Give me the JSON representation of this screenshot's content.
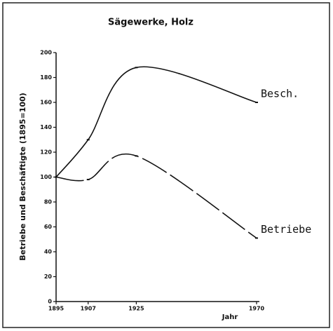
{
  "chart_data": {
    "type": "line",
    "title": "Sägewerke, Holz",
    "y_label": "Betriebe und Beschäftigte (1895=100)",
    "x_label": "Jahr",
    "x": [
      1895,
      1907,
      1925,
      1970
    ],
    "series": [
      {
        "name": "Besch.",
        "color": "#111111",
        "values": [
          100,
          130,
          188,
          160
        ]
      },
      {
        "name": "Betriebe",
        "color": "#111111",
        "values": [
          100,
          98,
          117,
          51
        ]
      }
    ],
    "xlim": [
      1895,
      1970
    ],
    "xticks": [
      1895,
      1907,
      1925,
      1970
    ],
    "ylim": [
      0,
      200
    ],
    "yticks": [
      0,
      20,
      40,
      60,
      80,
      100,
      120,
      140,
      160,
      180,
      200
    ],
    "grid": false
  }
}
